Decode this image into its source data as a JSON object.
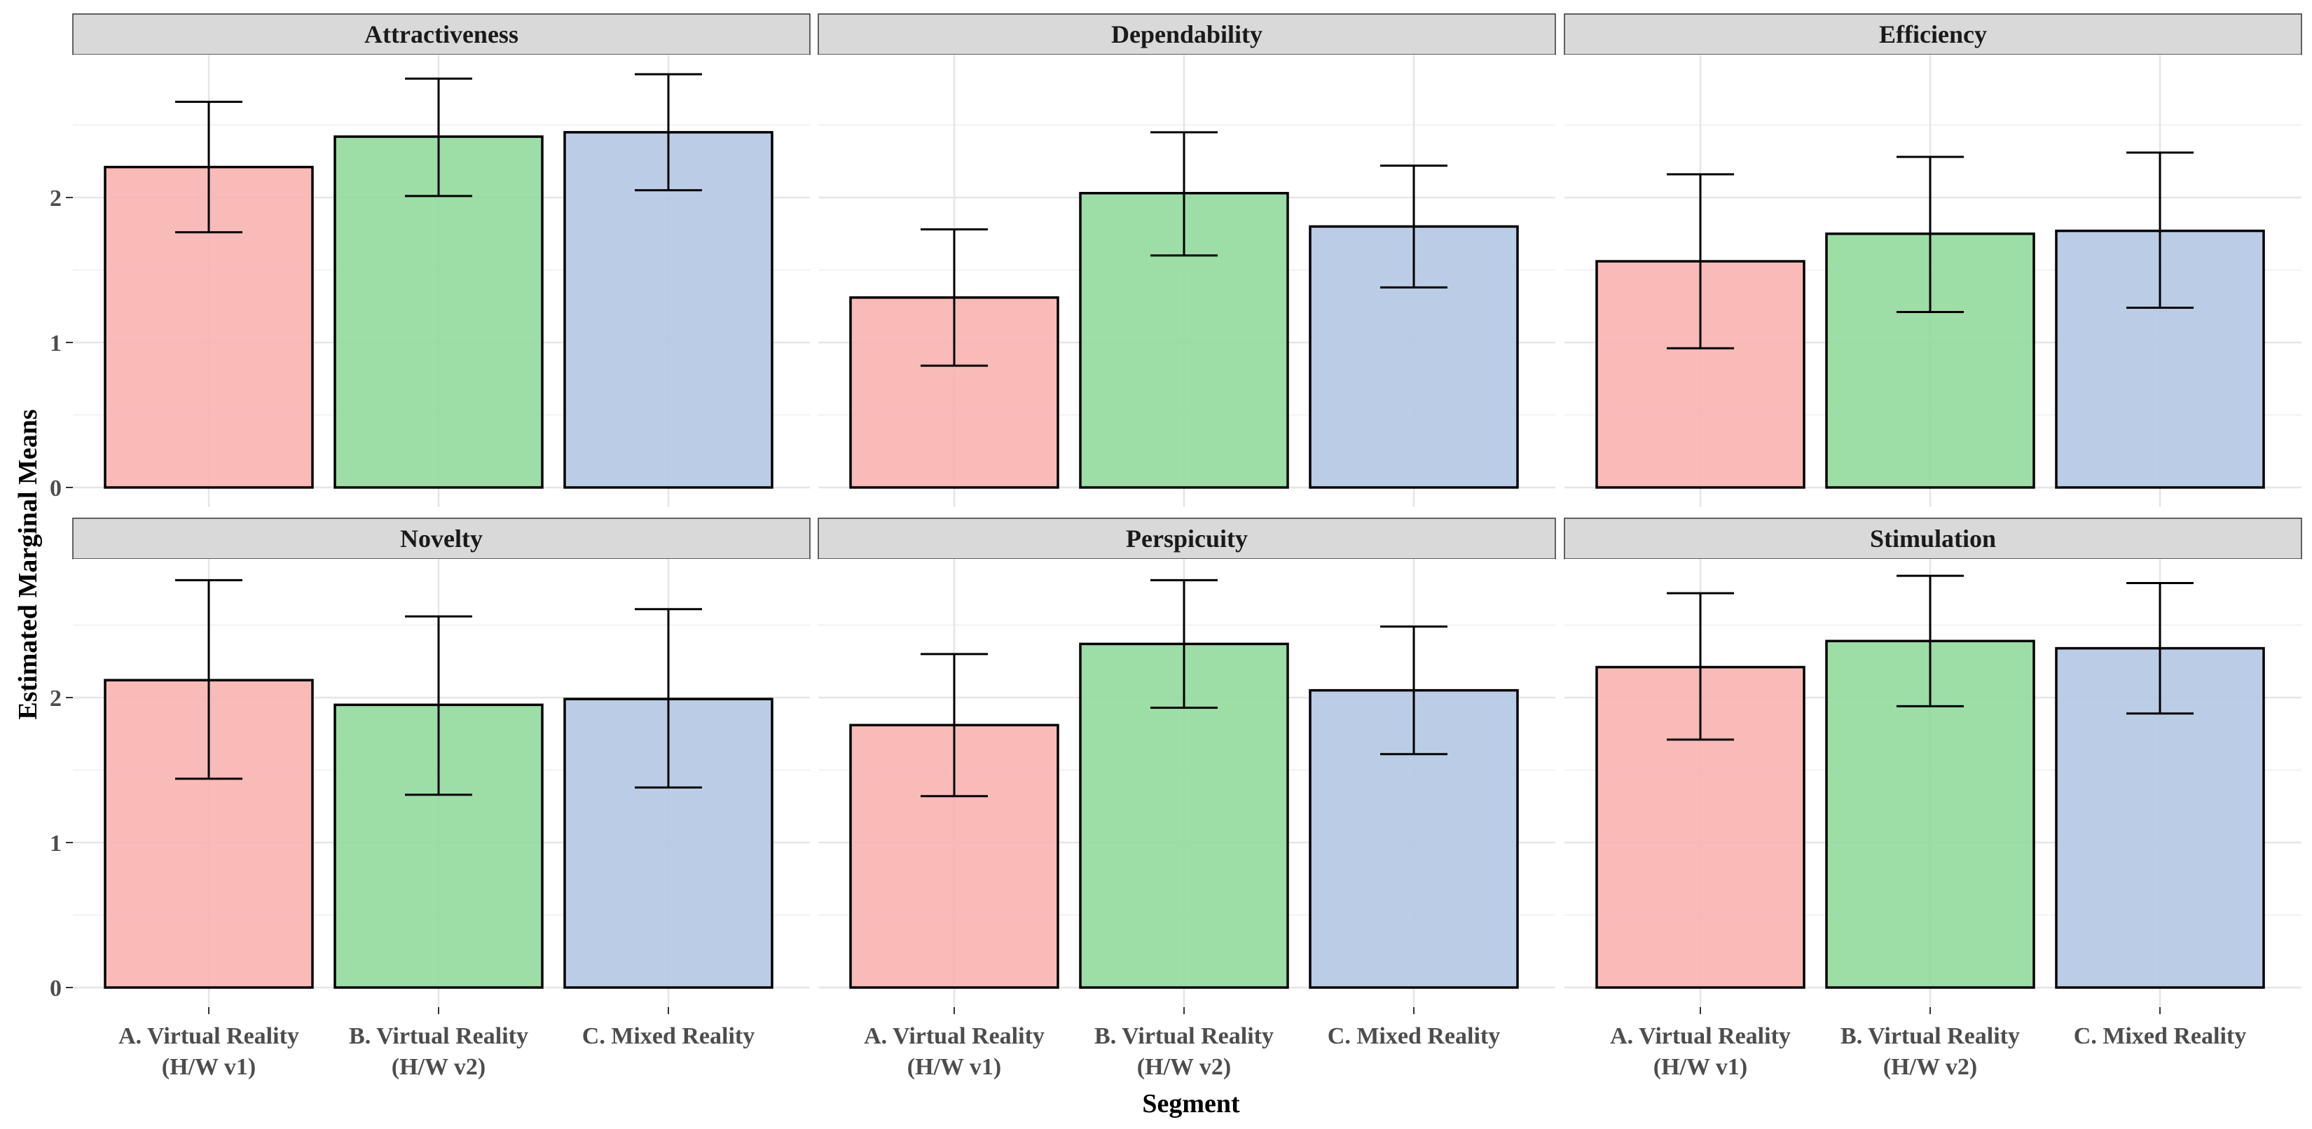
{
  "chart_data": {
    "type": "bar",
    "xlabel": "Segment",
    "ylabel": "Estimated Marginal Means",
    "ylim": [
      0,
      3
    ],
    "yticks": [
      0,
      1,
      2
    ],
    "grid": true,
    "legend": "none",
    "categories": [
      "A. Virtual Reality (H/W v1)",
      "B. Virtual Reality (H/W v2)",
      "C. Mixed Reality"
    ],
    "category_label_lines": [
      [
        "A. Virtual Reality",
        "(H/W v1)"
      ],
      [
        "B. Virtual Reality",
        "(H/W v2)"
      ],
      [
        "C. Mixed Reality"
      ]
    ],
    "colors": [
      "#f8b5b2",
      "#95da9e",
      "#b5c9e4"
    ],
    "panels": [
      {
        "title": "Attractiveness",
        "values": [
          2.21,
          2.42,
          2.45
        ],
        "lower": [
          1.76,
          2.01,
          2.05
        ],
        "upper": [
          2.66,
          2.82,
          2.85
        ]
      },
      {
        "title": "Dependability",
        "values": [
          1.31,
          2.03,
          1.8
        ],
        "lower": [
          0.84,
          1.6,
          1.38
        ],
        "upper": [
          1.78,
          2.45,
          2.22
        ]
      },
      {
        "title": "Efficiency",
        "values": [
          1.56,
          1.75,
          1.77
        ],
        "lower": [
          0.96,
          1.21,
          1.24
        ],
        "upper": [
          2.16,
          2.28,
          2.31
        ]
      },
      {
        "title": "Novelty",
        "values": [
          2.12,
          1.95,
          1.99
        ],
        "lower": [
          1.44,
          1.33,
          1.38
        ],
        "upper": [
          2.81,
          2.56,
          2.61
        ]
      },
      {
        "title": "Perspicuity",
        "values": [
          1.81,
          2.37,
          2.05
        ],
        "lower": [
          1.32,
          1.93,
          1.61
        ],
        "upper": [
          2.3,
          2.81,
          2.49
        ]
      },
      {
        "title": "Stimulation",
        "values": [
          2.21,
          2.39,
          2.34
        ],
        "lower": [
          1.71,
          1.94,
          1.89
        ],
        "upper": [
          2.72,
          2.84,
          2.79
        ]
      }
    ]
  }
}
